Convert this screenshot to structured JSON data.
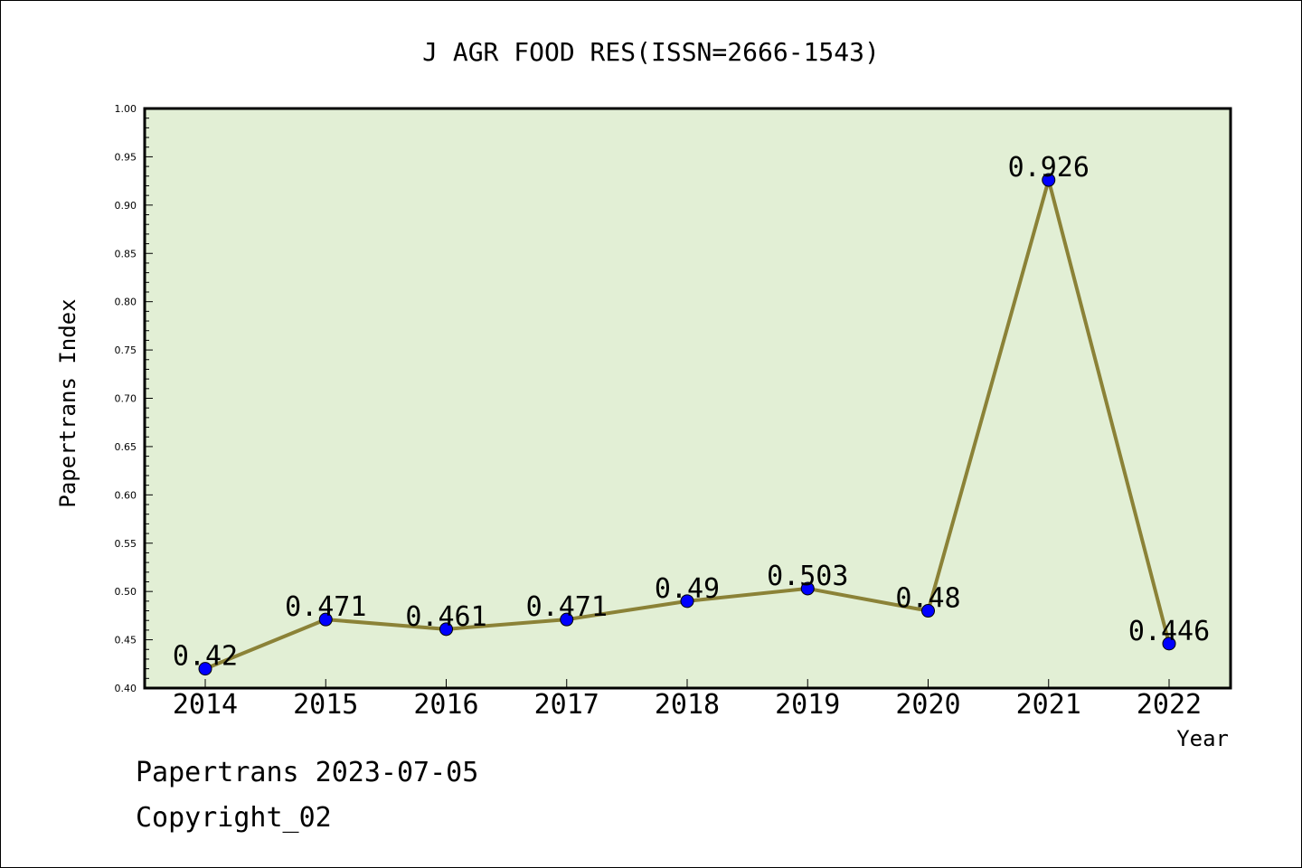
{
  "chart_data": {
    "type": "line",
    "title": "J AGR FOOD RES(ISSN=2666-1543)",
    "xlabel": "Year",
    "ylabel": "Papertrans Index",
    "categories": [
      "2014",
      "2015",
      "2016",
      "2017",
      "2018",
      "2019",
      "2020",
      "2021",
      "2022"
    ],
    "series": [
      {
        "values": [
          0.42,
          0.471,
          0.461,
          0.471,
          0.49,
          0.503,
          0.48,
          0.926,
          0.446
        ],
        "labels": [
          "0.42",
          "0.471",
          "0.461",
          "0.471",
          "0.49",
          "0.503",
          "0.48",
          "0.926",
          "0.446"
        ]
      }
    ],
    "ylim": [
      0.4,
      1.0
    ],
    "yticks": [
      "0.40",
      "0.45",
      "0.50",
      "0.55",
      "0.60",
      "0.65",
      "0.70",
      "0.75",
      "0.80",
      "0.85",
      "0.90",
      "0.95",
      "1.00"
    ],
    "grid": false,
    "colors": {
      "plot_background": "#e2efd5",
      "line": "#8b8237",
      "marker": "#0000ff"
    }
  },
  "footer": {
    "line1": "Papertrans 2023-07-05",
    "line2": "Copyright_02"
  }
}
